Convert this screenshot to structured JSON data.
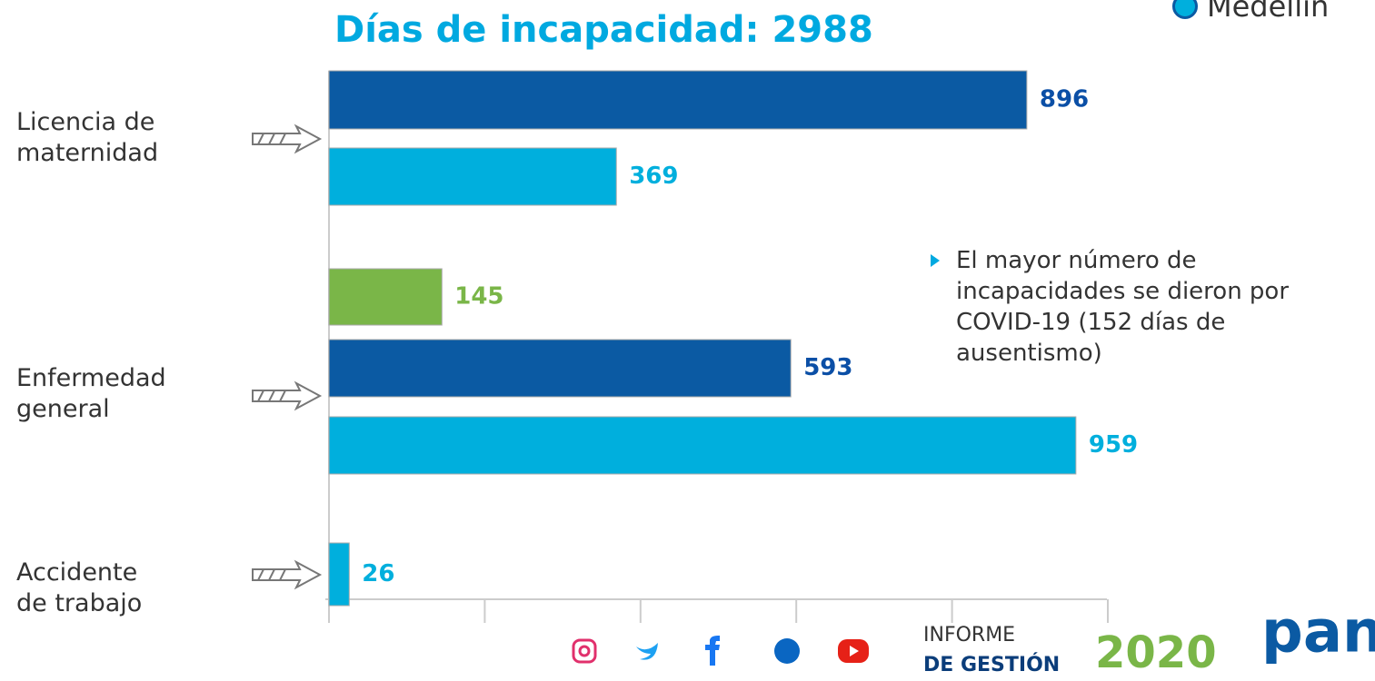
{
  "chart_data": {
    "type": "bar",
    "orientation": "horizontal",
    "title": "Días de incapacidad: 2988",
    "categories": [
      "Licencia de maternidad",
      "Enfermedad general",
      "Accidente de trabajo"
    ],
    "series": [
      {
        "color": "#0b5aa3",
        "values": [
          896,
          593,
          null
        ]
      },
      {
        "name": "Medellín",
        "color": "#00afdd",
        "values": [
          369,
          959,
          26
        ]
      },
      {
        "color": "#7ab648",
        "values": [
          null,
          145,
          null
        ]
      }
    ],
    "xlim": [
      0,
      1000
    ],
    "xticks": [
      0,
      200,
      400,
      600,
      800,
      1000
    ],
    "annotation": "El mayor número de incapacidades se dieron por COVID-19 (152 días de ausentismo)"
  },
  "footer": {
    "line1": "INFORME",
    "line2": "DE GESTIÓN",
    "year": "2020",
    "logo": "pan"
  }
}
